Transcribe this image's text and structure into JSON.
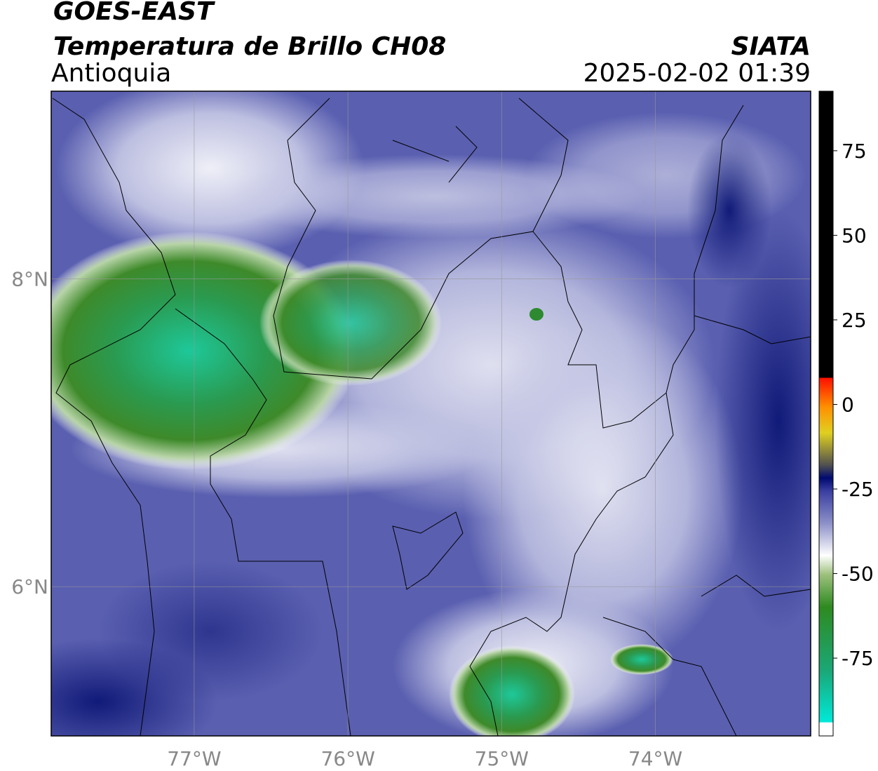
{
  "header": {
    "title": "GOES-EAST",
    "subtitle": "Temperatura de Brillo CH08",
    "region": "Antioquia",
    "agency": "SIATA",
    "datetime": "2025-02-02 01:39"
  },
  "map": {
    "xlim": [
      -77.93,
      -72.99
    ],
    "ylim": [
      5.03,
      9.22
    ],
    "xticks": [
      {
        "value": -77,
        "label": "77°W"
      },
      {
        "value": -76,
        "label": "76°W"
      },
      {
        "value": -75,
        "label": "75°W"
      },
      {
        "value": -74,
        "label": "74°W"
      }
    ],
    "yticks": [
      {
        "value": 8,
        "label": "8°N"
      },
      {
        "value": 6,
        "label": "6°N"
      }
    ],
    "grid": true
  },
  "colorbar": {
    "lim": [
      -98,
      92.6
    ],
    "ticks": [
      75,
      50,
      25,
      0,
      -25,
      -50,
      -75
    ]
  }
}
